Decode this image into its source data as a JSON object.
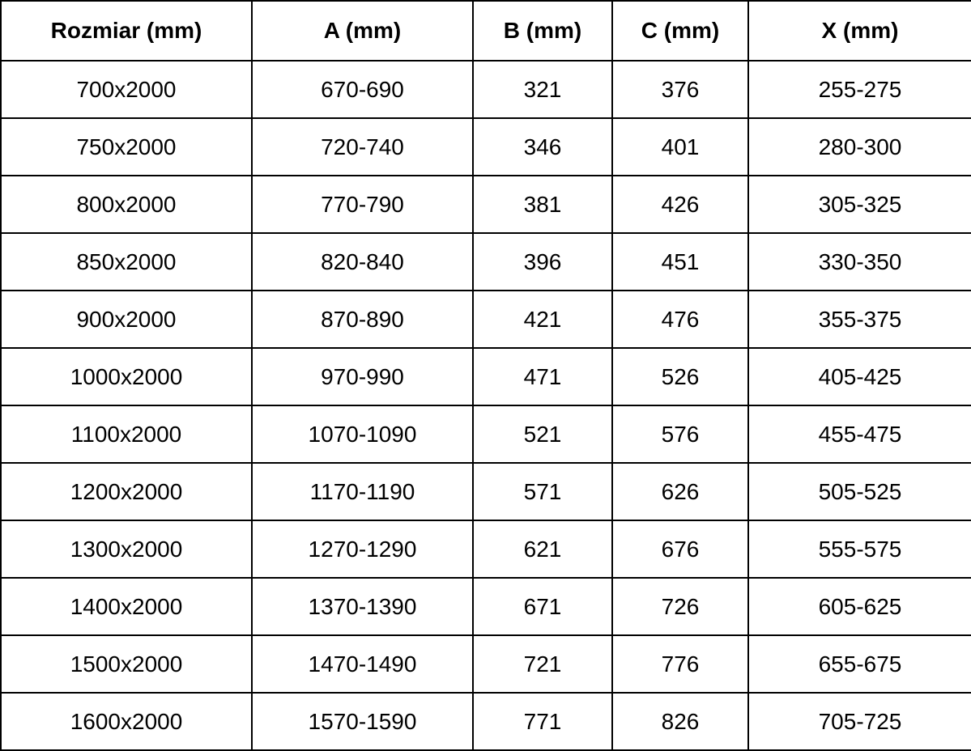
{
  "table": {
    "headers": [
      {
        "key": "rozmiar",
        "label": "Rozmiar (mm)"
      },
      {
        "key": "a",
        "label": "A (mm)"
      },
      {
        "key": "b",
        "label": "B (mm)"
      },
      {
        "key": "c",
        "label": "C (mm)"
      },
      {
        "key": "x",
        "label": "X (mm)"
      }
    ],
    "rows": [
      {
        "rozmiar": "700x2000",
        "a": "670-690",
        "b": "321",
        "c": "376",
        "x": "255-275"
      },
      {
        "rozmiar": "750x2000",
        "a": "720-740",
        "b": "346",
        "c": "401",
        "x": "280-300"
      },
      {
        "rozmiar": "800x2000",
        "a": "770-790",
        "b": "381",
        "c": "426",
        "x": "305-325"
      },
      {
        "rozmiar": "850x2000",
        "a": "820-840",
        "b": "396",
        "c": "451",
        "x": "330-350"
      },
      {
        "rozmiar": "900x2000",
        "a": "870-890",
        "b": "421",
        "c": "476",
        "x": "355-375"
      },
      {
        "rozmiar": "1000x2000",
        "a": "970-990",
        "b": "471",
        "c": "526",
        "x": "405-425"
      },
      {
        "rozmiar": "1100x2000",
        "a": "1070-1090",
        "b": "521",
        "c": "576",
        "x": "455-475"
      },
      {
        "rozmiar": "1200x2000",
        "a": "1170-1190",
        "b": "571",
        "c": "626",
        "x": "505-525"
      },
      {
        "rozmiar": "1300x2000",
        "a": "1270-1290",
        "b": "621",
        "c": "676",
        "x": "555-575"
      },
      {
        "rozmiar": "1400x2000",
        "a": "1370-1390",
        "b": "671",
        "c": "726",
        "x": "605-625"
      },
      {
        "rozmiar": "1500x2000",
        "a": "1470-1490",
        "b": "721",
        "c": "776",
        "x": "655-675"
      },
      {
        "rozmiar": "1600x2000",
        "a": "1570-1590",
        "b": "771",
        "c": "826",
        "x": "705-725"
      }
    ],
    "colors": {
      "text": "#000000",
      "border": "#000000",
      "background": "#ffffff"
    }
  }
}
